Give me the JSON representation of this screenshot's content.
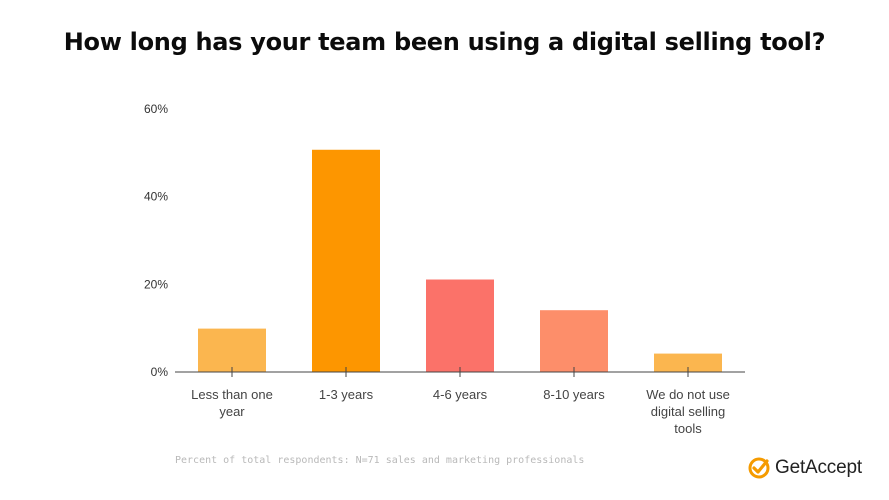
{
  "title": "How long has your team been using a digital selling tool?",
  "footnote": "Percent of total respondents: N=71 sales and marketing professionals",
  "brand": {
    "name": "GetAccept",
    "icon": "checkmark-badge-icon",
    "color": "#f59b00"
  },
  "chart_data": {
    "type": "bar",
    "categories": [
      [
        "Less than one",
        "year"
      ],
      [
        "1-3 years"
      ],
      [
        "4-6 years"
      ],
      [
        "8-10 years"
      ],
      [
        "We do not use",
        "digital selling",
        "tools"
      ]
    ],
    "values": [
      9.9,
      50.7,
      21.1,
      14.1,
      4.2
    ],
    "colors": [
      "#fbb64f",
      "#fd9600",
      "#fb7269",
      "#fd8e6a",
      "#fbb64f"
    ],
    "ylim": [
      0,
      60
    ],
    "yticks": [
      0,
      20,
      40,
      60
    ],
    "ytick_labels": [
      "0%",
      "20%",
      "40%",
      "60%"
    ],
    "xlabel": "",
    "ylabel": "",
    "grid": false
  }
}
